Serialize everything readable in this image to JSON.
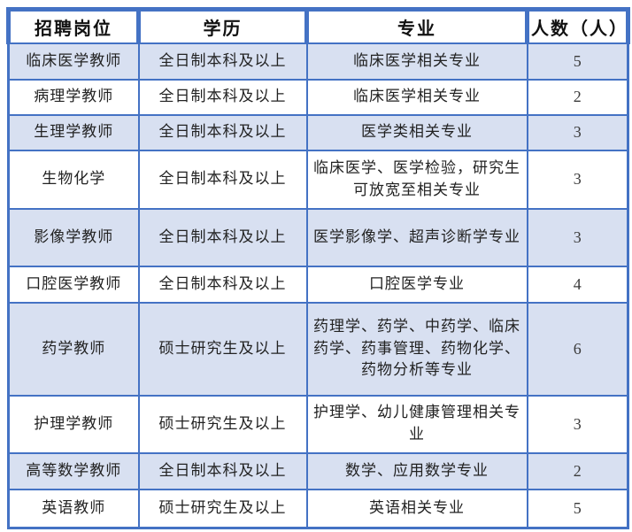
{
  "chart_data": {
    "type": "table",
    "columns": [
      "招聘岗位",
      "学历",
      "专业",
      "人数（人）"
    ],
    "rows": [
      {
        "position": "临床医学教师",
        "education": "全日制本科及以上",
        "major": "临床医学相关专业",
        "count": "5"
      },
      {
        "position": "病理学教师",
        "education": "全日制本科及以上",
        "major": "临床医学相关专业",
        "count": "2"
      },
      {
        "position": "生理学教师",
        "education": "全日制本科及以上",
        "major": "医学类相关专业",
        "count": "3"
      },
      {
        "position": "生物化学",
        "education": "全日制本科及以上",
        "major": "临床医学、医学检验，研究生可放宽至相关专业",
        "count": "3"
      },
      {
        "position": "影像学教师",
        "education": "全日制本科及以上",
        "major": "医学影像学、超声诊断学专业",
        "count": "3"
      },
      {
        "position": "口腔医学教师",
        "education": "全日制本科及以上",
        "major": "口腔医学专业",
        "count": "4"
      },
      {
        "position": "药学教师",
        "education": "硕士研究生及以上",
        "major": "药理学、药学、中药学、临床药学、药事管理、药物化学、药物分析等专业",
        "count": "6"
      },
      {
        "position": "护理学教师",
        "education": "硕士研究生及以上",
        "major": "护理学、幼儿健康管理相关专业",
        "count": "3"
      },
      {
        "position": "高等数学教师",
        "education": "全日制本科及以上",
        "major": "数学、应用数学专业",
        "count": "2"
      },
      {
        "position": "英语教师",
        "education": "硕士研究生及以上",
        "major": "英语相关专业",
        "count": "5"
      }
    ],
    "layout": {
      "banded_rows": "odd rows (1st, 3rd, ...) filled lavender, others white",
      "header_style": "white background, bold text, thick blue borders"
    }
  },
  "colors": {
    "border_blue": "#4472C4",
    "band_fill": "#D8E0F1",
    "row_fill": "#FFFFFF",
    "header_fill": "#FFFFFF",
    "header_text": "#111111",
    "body_text": "#222222"
  }
}
